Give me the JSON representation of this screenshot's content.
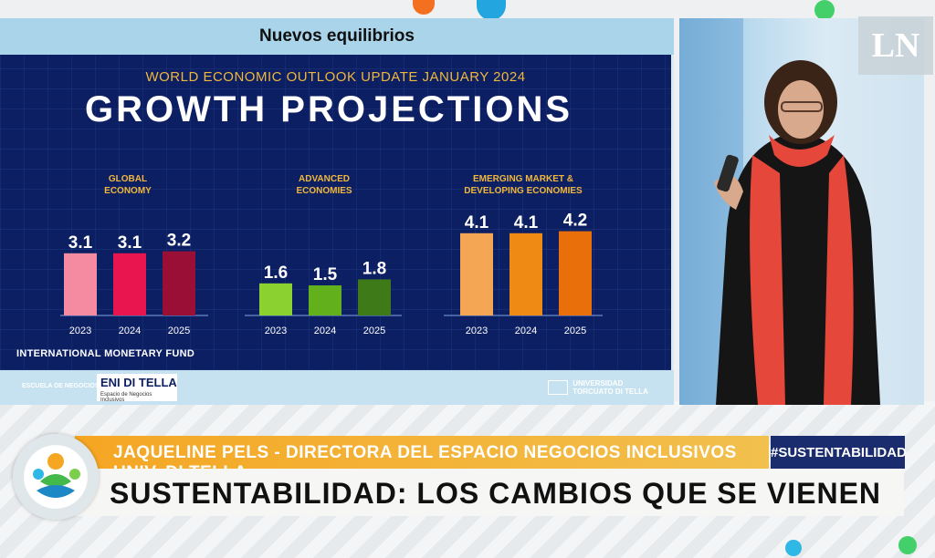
{
  "slide": {
    "header_title": "Nuevos equilibrios",
    "subtitle": "WORLD ECONOMIC OUTLOOK UPDATE JANUARY 2024",
    "title": "GROWTH PROJECTIONS",
    "source": "INTERNATIONAL MONETARY FUND",
    "footer_left": "ESCUELA DE NEGOCIOS",
    "eni_logo": "ENI DI TELLA",
    "eni_sub": "Espacio de Negocios Inclusivos",
    "utdt_line1": "UNIVERSIDAD",
    "utdt_line2": "TORCUATO DI TELLA"
  },
  "chart_data": [
    {
      "type": "bar",
      "title_lines": [
        "GLOBAL",
        "ECONOMY"
      ],
      "categories": [
        "2023",
        "2024",
        "2025"
      ],
      "values": [
        3.1,
        3.1,
        3.2
      ],
      "labels": [
        "3.1",
        "3.1",
        "3.2"
      ],
      "colors": [
        "#f58ba0",
        "#e8154e",
        "#9a0f35"
      ]
    },
    {
      "type": "bar",
      "title_lines": [
        "ADVANCED",
        "ECONOMIES"
      ],
      "categories": [
        "2023",
        "2024",
        "2025"
      ],
      "values": [
        1.6,
        1.5,
        1.8
      ],
      "labels": [
        "1.6",
        "1.5",
        "1.8"
      ],
      "colors": [
        "#8bd12f",
        "#62b11c",
        "#3f7a18"
      ]
    },
    {
      "type": "bar",
      "title_lines": [
        "EMERGING MARKET &",
        "DEVELOPING ECONOMIES"
      ],
      "categories": [
        "2023",
        "2024",
        "2025"
      ],
      "values": [
        4.1,
        4.1,
        4.2
      ],
      "labels": [
        "4.1",
        "4.1",
        "4.2"
      ],
      "colors": [
        "#f4a654",
        "#ef8a15",
        "#e86f0a"
      ]
    }
  ],
  "broadcast": {
    "channel_logo": "LN",
    "speaker_line": "JAQUELINE PELS - DIRECTORA DEL ESPACIO NEGOCIOS INCLUSIVOS UNIV. DI TELLA",
    "hashtag": "#SUSTENTABILIDAD",
    "headline": "SUSTENTABILIDAD: LOS CAMBIOS QUE SE VIENEN"
  }
}
